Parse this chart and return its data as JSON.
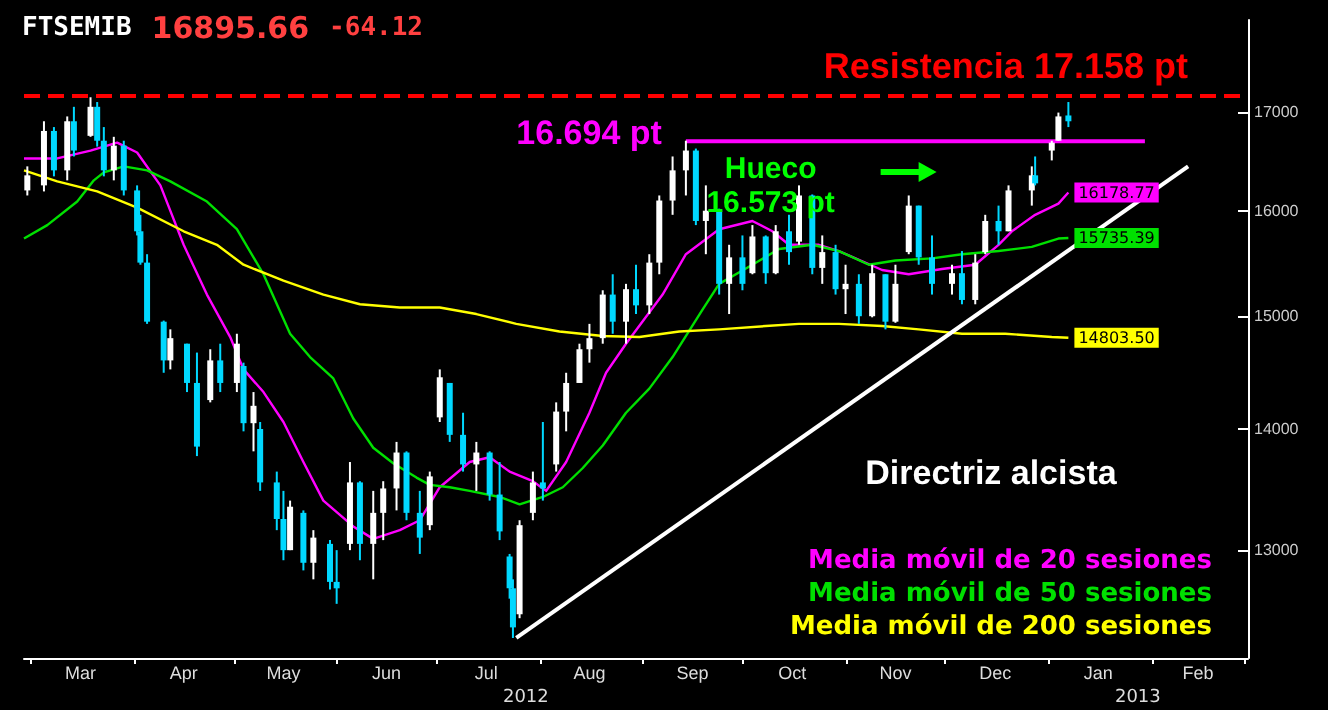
{
  "chart_data": {
    "type": "candlestick",
    "title": "FTSEMIB 16895.66 -64.12",
    "x": [
      "2012-02-29",
      "2012-03-05",
      "2012-03-08",
      "2012-03-12",
      "2012-03-14",
      "2012-03-19",
      "2012-03-21",
      "2012-03-23",
      "2012-03-26",
      "2012-03-29",
      "2012-04-02",
      "2012-04-03",
      "2012-04-05",
      "2012-04-10",
      "2012-04-12",
      "2012-04-17",
      "2012-04-20",
      "2012-04-24",
      "2012-04-27",
      "2012-05-02",
      "2012-05-04",
      "2012-05-07",
      "2012-05-09",
      "2012-05-14",
      "2012-05-16",
      "2012-05-18",
      "2012-05-22",
      "2012-05-25",
      "2012-05-30",
      "2012-06-01",
      "2012-06-05",
      "2012-06-08",
      "2012-06-12",
      "2012-06-15",
      "2012-06-19",
      "2012-06-22",
      "2012-06-26",
      "2012-06-29",
      "2012-07-02",
      "2012-07-05",
      "2012-07-09",
      "2012-07-13",
      "2012-07-17",
      "2012-07-20",
      "2012-07-23",
      "2012-07-24",
      "2012-07-26",
      "2012-07-30",
      "2012-08-02",
      "2012-08-06",
      "2012-08-09",
      "2012-08-13",
      "2012-08-16",
      "2012-08-20",
      "2012-08-23",
      "2012-08-27",
      "2012-08-30",
      "2012-09-03",
      "2012-09-06",
      "2012-09-10",
      "2012-09-14",
      "2012-09-17",
      "2012-09-20",
      "2012-09-24",
      "2012-09-27",
      "2012-10-01",
      "2012-10-04",
      "2012-10-08",
      "2012-10-11",
      "2012-10-15",
      "2012-10-18",
      "2012-10-22",
      "2012-10-25",
      "2012-10-29",
      "2012-11-01",
      "2012-11-05",
      "2012-11-09",
      "2012-11-13",
      "2012-11-16",
      "2012-11-20",
      "2012-11-23",
      "2012-11-27",
      "2012-12-03",
      "2012-12-06",
      "2012-12-10",
      "2012-12-13",
      "2012-12-17",
      "2012-12-20",
      "2012-12-27",
      "2012-12-28",
      "2013-01-02",
      "2013-01-04",
      "2013-01-07"
    ],
    "ohlc": [
      [
        16200,
        16440,
        16150,
        16350
      ],
      [
        16250,
        16900,
        16190,
        16800
      ],
      [
        16800,
        16840,
        16340,
        16400
      ],
      [
        16400,
        16950,
        16300,
        16900
      ],
      [
        16900,
        17050,
        16540,
        16600
      ],
      [
        16750,
        17150,
        16740,
        17050
      ],
      [
        17050,
        17100,
        16640,
        16700
      ],
      [
        16700,
        16840,
        16340,
        16400
      ],
      [
        16400,
        16740,
        16300,
        16650
      ],
      [
        16650,
        16700,
        16150,
        16200
      ],
      [
        16200,
        16250,
        15760,
        15800
      ],
      [
        15800,
        15960,
        15480,
        15500
      ],
      [
        15500,
        15580,
        14930,
        14950
      ],
      [
        14950,
        14960,
        14490,
        14600
      ],
      [
        14600,
        14880,
        14520,
        14800
      ],
      [
        14750,
        14750,
        14320,
        14400
      ],
      [
        14400,
        14670,
        13770,
        13850
      ],
      [
        14250,
        14700,
        14230,
        14600
      ],
      [
        14600,
        14750,
        14320,
        14400
      ],
      [
        14400,
        14840,
        14320,
        14750
      ],
      [
        14550,
        14580,
        13980,
        14050
      ],
      [
        14050,
        14320,
        13810,
        14200
      ],
      [
        14000,
        14060,
        13480,
        13550
      ],
      [
        13550,
        13640,
        13160,
        13250
      ],
      [
        13250,
        13480,
        12920,
        13000
      ],
      [
        13000,
        13400,
        13000,
        13350
      ],
      [
        13300,
        13320,
        12840,
        12900
      ],
      [
        12900,
        13160,
        12770,
        13100
      ],
      [
        13050,
        13080,
        12690,
        12750
      ],
      [
        12750,
        13000,
        12580,
        12700
      ],
      [
        13050,
        13720,
        13000,
        13550
      ],
      [
        13550,
        13560,
        12920,
        13050
      ],
      [
        13050,
        13480,
        12770,
        13300
      ],
      [
        13300,
        13560,
        13080,
        13500
      ],
      [
        13500,
        13890,
        13320,
        13800
      ],
      [
        13800,
        13810,
        13240,
        13300
      ],
      [
        13300,
        13480,
        12970,
        13100
      ],
      [
        13200,
        13640,
        13160,
        13600
      ],
      [
        14100,
        14520,
        14060,
        14450
      ],
      [
        14400,
        14400,
        13890,
        13950
      ],
      [
        13950,
        14140,
        13640,
        13700
      ],
      [
        13700,
        13890,
        13480,
        13800
      ],
      [
        13800,
        13810,
        13400,
        13450
      ],
      [
        13450,
        13720,
        13080,
        13150
      ],
      [
        12950,
        12970,
        12620,
        12700
      ],
      [
        12700,
        12770,
        12320,
        12400
      ],
      [
        12500,
        13240,
        12470,
        13200
      ],
      [
        13300,
        13640,
        13240,
        13550
      ],
      [
        13550,
        14060,
        13400,
        13500
      ],
      [
        13700,
        14230,
        13640,
        14150
      ],
      [
        14150,
        14490,
        13980,
        14400
      ],
      [
        14400,
        14750,
        14400,
        14700
      ],
      [
        14700,
        14930,
        14580,
        14800
      ],
      [
        14800,
        15240,
        14750,
        15200
      ],
      [
        15200,
        15390,
        14840,
        14950
      ],
      [
        14950,
        15300,
        14750,
        15250
      ],
      [
        15250,
        15480,
        15020,
        15100
      ],
      [
        15100,
        15580,
        15020,
        15500
      ],
      [
        15500,
        16150,
        15390,
        16100
      ],
      [
        16100,
        16540,
        15960,
        16400
      ],
      [
        16400,
        16700,
        16150,
        16600
      ],
      [
        16600,
        16620,
        15860,
        15900
      ],
      [
        15900,
        16250,
        15580,
        16000
      ],
      [
        16000,
        16020,
        15200,
        15300
      ],
      [
        15300,
        15670,
        15020,
        15550
      ],
      [
        15550,
        15760,
        15240,
        15300
      ],
      [
        15400,
        15860,
        15390,
        15750
      ],
      [
        15750,
        15760,
        15300,
        15400
      ],
      [
        15400,
        15860,
        15390,
        15800
      ],
      [
        15800,
        15960,
        15480,
        15600
      ],
      [
        15700,
        16250,
        15670,
        16150
      ],
      [
        16150,
        16160,
        15390,
        15450
      ],
      [
        15450,
        15760,
        15300,
        15600
      ],
      [
        15600,
        15670,
        15200,
        15250
      ],
      [
        15250,
        15480,
        15020,
        15300
      ],
      [
        15300,
        15390,
        14930,
        15000
      ],
      [
        15000,
        15480,
        14990,
        15400
      ],
      [
        15390,
        15390,
        14880,
        14950
      ],
      [
        14950,
        15480,
        14940,
        15300
      ],
      [
        15600,
        16150,
        15580,
        16050
      ],
      [
        16050,
        16050,
        15480,
        15550
      ],
      [
        15550,
        15760,
        15200,
        15300
      ],
      [
        15300,
        15480,
        15200,
        15400
      ],
      [
        15400,
        15610,
        15110,
        15150
      ],
      [
        15150,
        15580,
        15110,
        15500
      ],
      [
        15600,
        15960,
        15580,
        15900
      ],
      [
        15900,
        16050,
        15670,
        15800
      ],
      [
        15800,
        16250,
        15800,
        16200
      ],
      [
        16200,
        16440,
        16050,
        16350
      ],
      [
        16350,
        16540,
        16250,
        16270
      ],
      [
        16600,
        16700,
        16500,
        16680
      ],
      [
        16700,
        16990,
        16700,
        16950
      ],
      [
        16960,
        17100,
        16840,
        16900
      ]
    ],
    "series": [
      {
        "type": "line",
        "name": "Media móvil de 20 sesiones",
        "color": "#ff00ff",
        "x": [
          "2012-02-28",
          "2012-03-09",
          "2012-03-19",
          "2012-03-27",
          "2012-04-02",
          "2012-04-09",
          "2012-04-16",
          "2012-04-23",
          "2012-04-30",
          "2012-05-04",
          "2012-05-10",
          "2012-05-16",
          "2012-05-22",
          "2012-05-28",
          "2012-06-06",
          "2012-06-12",
          "2012-06-20",
          "2012-06-26",
          "2012-07-02",
          "2012-07-11",
          "2012-07-17",
          "2012-07-23",
          "2012-07-30",
          "2012-08-03",
          "2012-08-09",
          "2012-08-16",
          "2012-08-21",
          "2012-08-27",
          "2012-09-07",
          "2012-09-14",
          "2012-09-24",
          "2012-10-04",
          "2012-10-10",
          "2012-10-15",
          "2012-10-24",
          "2012-10-30",
          "2012-11-12",
          "2012-11-20",
          "2012-11-30",
          "2012-12-10",
          "2012-12-17",
          "2012-12-21",
          "2012-12-28",
          "2013-01-04",
          "2013-01-07"
        ],
        "values": [
          16520,
          16520,
          16600,
          16680,
          16580,
          16250,
          15670,
          15200,
          14810,
          14520,
          14320,
          14060,
          13720,
          13400,
          13190,
          13090,
          13160,
          13240,
          13510,
          13720,
          13760,
          13640,
          13560,
          13480,
          13720,
          14140,
          14490,
          14750,
          15200,
          15580,
          15820,
          15900,
          15800,
          15670,
          15670,
          15610,
          15430,
          15390,
          15440,
          15480,
          15670,
          15800,
          15960,
          16070,
          16178.77
        ],
        "value_labels": [
          null,
          null,
          null,
          null,
          null,
          null,
          null,
          null,
          null,
          null,
          null,
          null,
          null,
          null,
          null,
          null,
          null,
          null,
          null,
          null,
          null,
          null,
          null,
          null,
          null,
          null,
          null,
          null,
          null,
          null,
          null,
          null,
          null,
          null,
          null,
          null,
          null,
          null,
          null,
          null,
          null,
          null,
          null,
          null,
          "16178.77"
        ]
      },
      {
        "type": "line",
        "name": "Media móvil de 50 sesiones",
        "color": "#00e000",
        "x": [
          "2012-02-28",
          "2012-03-06",
          "2012-03-15",
          "2012-03-20",
          "2012-03-23",
          "2012-03-29",
          "2012-04-05",
          "2012-04-12",
          "2012-04-23",
          "2012-05-02",
          "2012-05-10",
          "2012-05-18",
          "2012-05-24",
          "2012-05-31",
          "2012-06-06",
          "2012-06-12",
          "2012-06-18",
          "2012-06-25",
          "2012-06-29",
          "2012-07-05",
          "2012-07-11",
          "2012-07-20",
          "2012-07-26",
          "2012-08-02",
          "2012-08-08",
          "2012-08-14",
          "2012-08-20",
          "2012-08-27",
          "2012-09-03",
          "2012-09-10",
          "2012-09-19",
          "2012-09-24",
          "2012-10-04",
          "2012-10-12",
          "2012-10-22",
          "2012-10-30",
          "2012-11-08",
          "2012-11-16",
          "2012-11-27",
          "2012-12-06",
          "2012-12-17",
          "2012-12-27",
          "2013-01-04",
          "2013-01-07"
        ],
        "values": [
          15730,
          15860,
          16090,
          16300,
          16380,
          16440,
          16400,
          16290,
          16090,
          15820,
          15390,
          14840,
          14630,
          14440,
          14090,
          13840,
          13710,
          13590,
          13530,
          13510,
          13480,
          13430,
          13370,
          13430,
          13510,
          13670,
          13860,
          14140,
          14350,
          14630,
          15060,
          15300,
          15480,
          15630,
          15670,
          15610,
          15480,
          15520,
          15540,
          15580,
          15610,
          15650,
          15730,
          15735.39
        ],
        "value_labels": [
          null,
          null,
          null,
          null,
          null,
          null,
          null,
          null,
          null,
          null,
          null,
          null,
          null,
          null,
          null,
          null,
          null,
          null,
          null,
          null,
          null,
          null,
          null,
          null,
          null,
          null,
          null,
          null,
          null,
          null,
          null,
          null,
          null,
          null,
          null,
          null,
          null,
          null,
          null,
          null,
          null,
          null,
          null,
          "15735.39"
        ]
      },
      {
        "type": "line",
        "name": "Media móvil de 200 sesiones",
        "color": "#ffff00",
        "x": [
          "2012-02-28",
          "2012-03-09",
          "2012-03-21",
          "2012-04-02",
          "2012-04-16",
          "2012-04-26",
          "2012-05-04",
          "2012-05-16",
          "2012-05-28",
          "2012-06-08",
          "2012-06-20",
          "2012-07-02",
          "2012-07-13",
          "2012-07-25",
          "2012-08-07",
          "2012-08-20",
          "2012-08-31",
          "2012-09-12",
          "2012-09-24",
          "2012-10-08",
          "2012-10-18",
          "2012-10-30",
          "2012-11-12",
          "2012-11-23",
          "2012-12-06",
          "2012-12-19",
          "2013-01-02",
          "2013-01-07"
        ],
        "values": [
          16400,
          16290,
          16190,
          16030,
          15800,
          15670,
          15480,
          15330,
          15200,
          15110,
          15080,
          15080,
          15020,
          14930,
          14860,
          14820,
          14810,
          14860,
          14880,
          14910,
          14930,
          14930,
          14910,
          14880,
          14840,
          14840,
          14810,
          14803.5
        ],
        "value_labels": [
          null,
          null,
          null,
          null,
          null,
          null,
          null,
          null,
          null,
          null,
          null,
          null,
          null,
          null,
          null,
          null,
          null,
          null,
          null,
          null,
          null,
          null,
          null,
          null,
          null,
          null,
          null,
          "14803.50"
        ]
      },
      {
        "type": "line",
        "color": "#ff00ff",
        "x": [
          "2012-09-14",
          "2013-01-30"
        ],
        "values": [
          16694,
          16694
        ]
      },
      {
        "type": "line",
        "color": "#ffffff",
        "x": [
          "2012-07-25",
          "2013-02-12"
        ],
        "values": [
          12320,
          16440
        ]
      }
    ],
    "ref_lines": [
      {
        "axis": "y",
        "value": 17158,
        "label": "Resistencia 17.158 pt",
        "color": "#ff0000",
        "line_style": "dashed"
      }
    ],
    "annotations": [
      {
        "text": "16.694 pt",
        "x": "2012-09-14",
        "y": 16694
      },
      "Hueco\n16.573 pt",
      "Directriz alcista",
      "2012",
      "2013"
    ],
    "xlim": [
      "2012-02-28",
      "2013-03-02"
    ],
    "xticks": [
      {
        "value": "2012-03-01",
        "label": null
      },
      {
        "value": "2012-03-16",
        "label": "Mar"
      },
      {
        "value": "2012-04-01",
        "label": null
      },
      {
        "value": "2012-04-16",
        "label": "Apr"
      },
      {
        "value": "2012-05-01",
        "label": null
      },
      {
        "value": "2012-05-16",
        "label": "May"
      },
      {
        "value": "2012-06-01",
        "label": null
      },
      {
        "value": "2012-06-16",
        "label": "Jun"
      },
      {
        "value": "2012-07-01",
        "label": null
      },
      {
        "value": "2012-07-16",
        "label": "Jul"
      },
      {
        "value": "2012-08-01",
        "label": null
      },
      {
        "value": "2012-08-16",
        "label": "Aug"
      },
      {
        "value": "2012-09-01",
        "label": null
      },
      {
        "value": "2012-09-16",
        "label": "Sep"
      },
      {
        "value": "2012-10-01",
        "label": null
      },
      {
        "value": "2012-10-16",
        "label": "Oct"
      },
      {
        "value": "2012-11-01",
        "label": null
      },
      {
        "value": "2012-11-16",
        "label": "Nov"
      },
      {
        "value": "2012-12-01",
        "label": null
      },
      {
        "value": "2012-12-16",
        "label": "Dec"
      },
      {
        "value": "2013-01-01",
        "label": null
      },
      {
        "value": "2013-01-16",
        "label": "Jan"
      },
      {
        "value": "2013-02-01",
        "label": null
      },
      {
        "value": "2013-02-15",
        "label": "Feb"
      },
      {
        "value": "2013-03-01",
        "label": null
      }
    ],
    "ylim": [
      12170,
      17980
    ],
    "yticks": [
      13000,
      14000,
      15000,
      16000,
      17000
    ],
    "log": "y",
    "grid": false,
    "legend": "bottom right",
    "marker": "none",
    "line_style": "solid"
  }
}
